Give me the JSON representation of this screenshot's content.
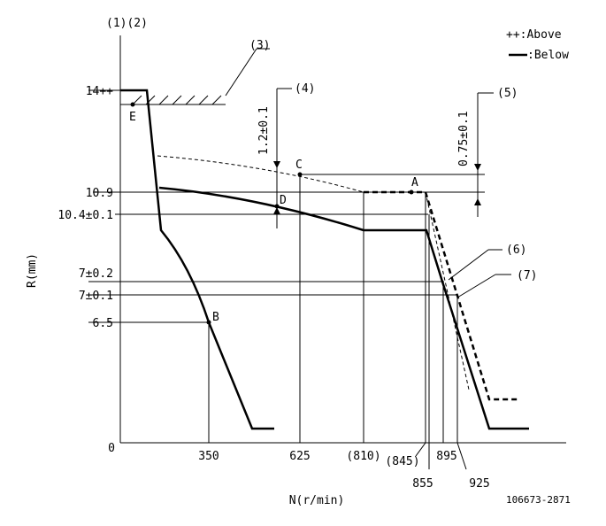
{
  "header": {
    "ref": "(1)(2)",
    "code": "106673-2871"
  },
  "legend": {
    "above": "++:Above",
    "below": ":Below"
  },
  "callouts": [
    "(3)",
    "(4)",
    "(5)",
    "(6)",
    "(7)"
  ],
  "tolerances": {
    "c4": "1.2±0.1",
    "c5": "0.75±0.1"
  },
  "y_axis": {
    "title": "R(mm)",
    "labels": [
      "14++",
      "10.9",
      "10.4±0.1",
      "7±0.2",
      "7±0.1",
      "6.5",
      "0"
    ]
  },
  "x_axis": {
    "title": "N(r/min)",
    "labels": [
      "350",
      "625",
      "(810)",
      "(845)",
      "855",
      "895",
      "925"
    ]
  },
  "points": [
    "A",
    "B",
    "C",
    "D",
    "E"
  ]
}
